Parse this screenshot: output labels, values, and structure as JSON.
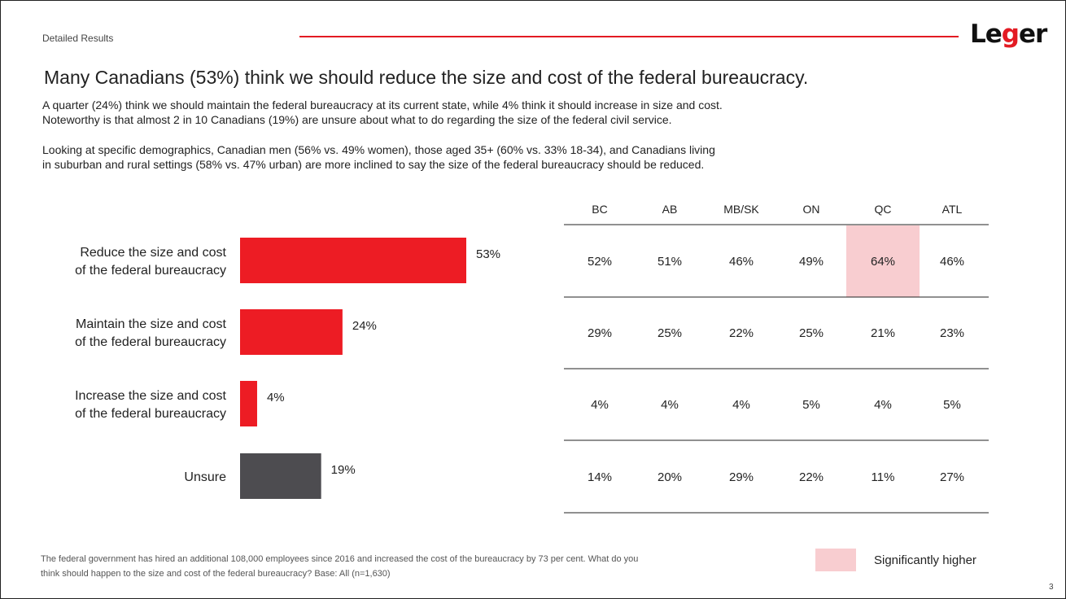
{
  "header": {
    "section_label": "Detailed Results",
    "logo_text": "Leger",
    "accent_color": "#e31b23"
  },
  "title": "Many Canadians (53%) think we should reduce the size and cost of the federal bureaucracy.",
  "paragraphs": [
    {
      "line1": "A quarter (24%) think we should maintain the federal bureaucracy at its current state, while 4% think it should increase in size and cost.",
      "line2": "Noteworthy is that almost 2 in 10 Canadians (19%) are unsure about what to do regarding the size of the federal civil service."
    },
    {
      "line1": "Looking at specific demographics, Canadian men (56% vs. 49% women), those aged 35+ (60% vs. 33% 18-34), and Canadians living",
      "line2": "in suburban and rural settings (58% vs. 47% urban) are more inclined to say the size of the federal bureaucracy should be reduced."
    }
  ],
  "chart_data": {
    "type": "bar",
    "orientation": "horizontal",
    "categories": [
      [
        "Reduce the size and cost",
        "of the federal bureaucracy"
      ],
      [
        "Maintain the size and cost",
        "of the federal bureaucracy"
      ],
      [
        "Increase the size and cost",
        "of the federal bureaucracy"
      ],
      [
        "Unsure"
      ]
    ],
    "values": [
      53,
      24,
      4,
      19
    ],
    "value_labels": [
      "53%",
      "24%",
      "4%",
      "19%"
    ],
    "bar_colors": [
      "#ed1c24",
      "#ed1c24",
      "#ed1c24",
      "#4d4c50"
    ],
    "xlim": [
      0,
      100
    ]
  },
  "region_table": {
    "columns": [
      "BC",
      "AB",
      "MB/SK",
      "ON",
      "QC",
      "ATL"
    ],
    "rows": [
      [
        "52%",
        "51%",
        "46%",
        "49%",
        "64%",
        "46%"
      ],
      [
        "29%",
        "25%",
        "22%",
        "25%",
        "21%",
        "23%"
      ],
      [
        "4%",
        "4%",
        "4%",
        "5%",
        "4%",
        "5%"
      ],
      [
        "14%",
        "20%",
        "29%",
        "22%",
        "11%",
        "27%"
      ]
    ],
    "highlights": [
      {
        "row": 0,
        "col": 4
      }
    ],
    "highlight_color": "#f8cdd0"
  },
  "footnote": {
    "line1": "The federal government has hired an additional 108,000 employees since 2016 and increased the cost of the bureaucracy by 73 per cent. What do you",
    "line2": "think should happen to the size and cost of the federal bureaucracy? Base: All (n=1,630)"
  },
  "legend": {
    "label": "Significantly higher"
  },
  "page_number": "3"
}
